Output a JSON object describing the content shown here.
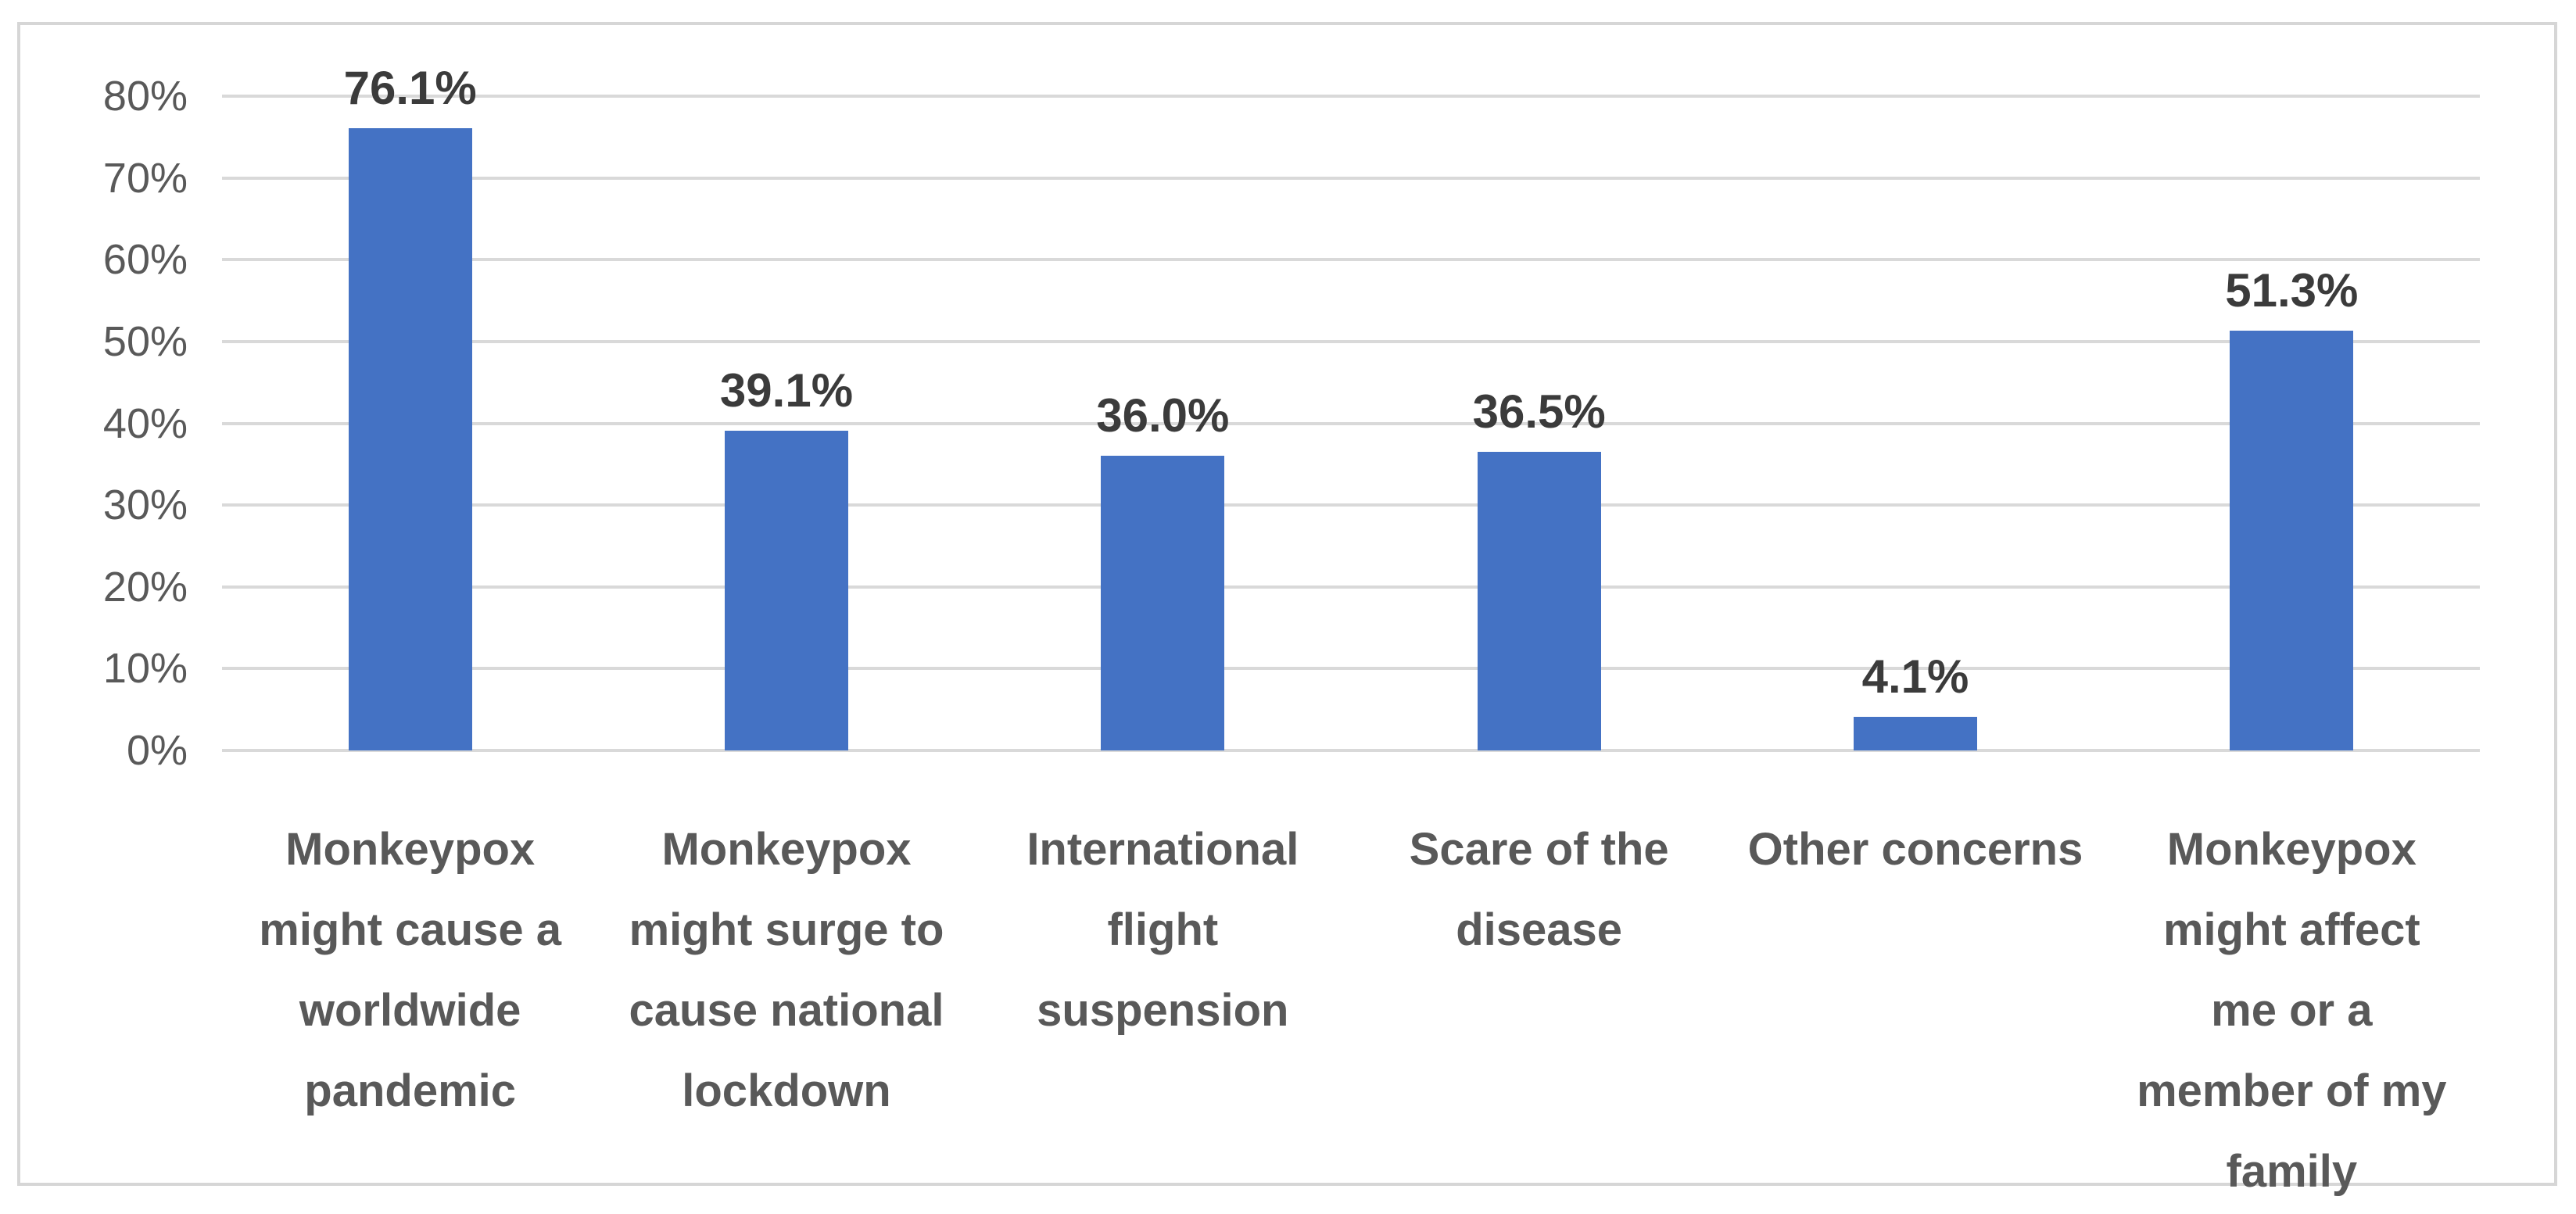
{
  "chart_data": {
    "type": "bar",
    "categories": [
      "Monkeypox might cause a worldwide pandemic",
      "Monkeypox might surge to cause national lockdown",
      "International flight suspension",
      "Scare of the disease",
      "Other concerns",
      "Monkeypox might affect me or a member of my family"
    ],
    "category_lines": [
      [
        "Monkeypox",
        "might cause a",
        "worldwide",
        "pandemic"
      ],
      [
        "Monkeypox",
        "might surge to",
        "cause national",
        "lockdown"
      ],
      [
        "International",
        "flight",
        "suspension"
      ],
      [
        "Scare of the",
        "disease"
      ],
      [
        "Other concerns"
      ],
      [
        "Monkeypox",
        "might affect",
        "me or a",
        "member of my",
        "family"
      ]
    ],
    "values": [
      76.1,
      39.1,
      36.0,
      36.5,
      4.1,
      51.3
    ],
    "data_labels": [
      "76.1%",
      "39.1%",
      "36.0%",
      "36.5%",
      "4.1%",
      "51.3%"
    ],
    "y_ticks": [
      "0%",
      "10%",
      "20%",
      "30%",
      "40%",
      "50%",
      "60%",
      "70%",
      "80%"
    ],
    "y_tick_values": [
      0,
      10,
      20,
      30,
      40,
      50,
      60,
      70,
      80
    ],
    "ylim": [
      0,
      80
    ],
    "grid": true,
    "legend_position": "none",
    "bar_color": "#4472C4",
    "data_label_color": "#3b3b3b",
    "axis_text_color": "#595959",
    "category_label_color": "#595959",
    "gridline_color": "#d9d9d9",
    "frame_border_color": "#d6d6d6"
  }
}
